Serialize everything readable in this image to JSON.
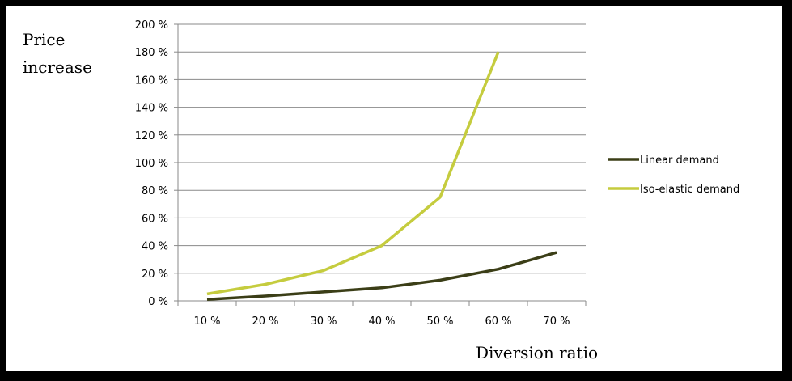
{
  "chart_data": {
    "type": "line",
    "ylabel_lines": [
      "Price",
      "increase"
    ],
    "xlabel": "Diversion ratio",
    "y_ticks": [
      "0 %",
      "20 %",
      "40 %",
      "60 %",
      "80 %",
      "100 %",
      "120 %",
      "140 %",
      "160 %",
      "180 %",
      "200 %"
    ],
    "x_ticks": [
      "10 %",
      "20 %",
      "30 %",
      "40 %",
      "50 %",
      "60 %",
      "70 %"
    ],
    "ylim": [
      0,
      200
    ],
    "grid": "horizontal",
    "legend_position": "right",
    "series": [
      {
        "name": "Linear demand",
        "color": "#3b3e17",
        "x": [
          10,
          20,
          30,
          40,
          50,
          60,
          70
        ],
        "values": [
          1,
          3.5,
          6.5,
          9.5,
          15,
          23,
          35
        ]
      },
      {
        "name": "Iso-elastic demand",
        "color": "#c5cc3e",
        "x": [
          10,
          20,
          30,
          40,
          50,
          60
        ],
        "values": [
          5,
          12,
          22,
          40,
          75,
          180
        ]
      }
    ]
  }
}
